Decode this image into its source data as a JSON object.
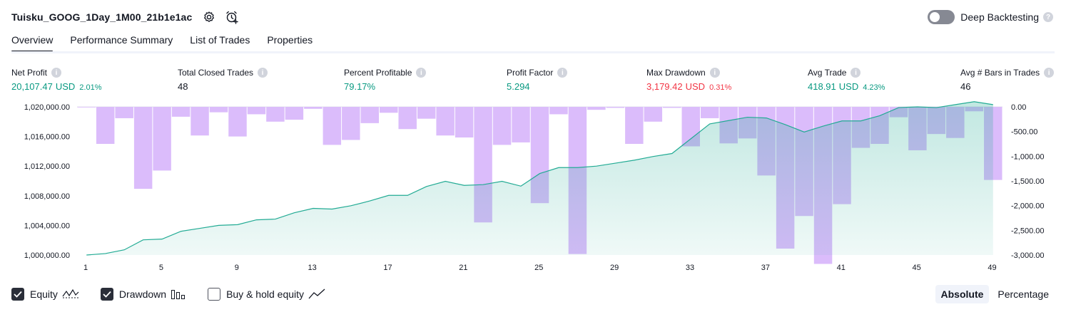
{
  "header": {
    "title": "Tuisku_GOOG_1Day_1M00_21b1e1ac",
    "settings_icon": "gear-icon",
    "alert_icon": "alarm-clock-add-icon"
  },
  "deep_backtesting": {
    "label": "Deep Backtesting",
    "enabled": false,
    "help": "?"
  },
  "tabs": [
    {
      "label": "Overview",
      "active": true
    },
    {
      "label": "Performance Summary",
      "active": false
    },
    {
      "label": "List of Trades",
      "active": false
    },
    {
      "label": "Properties",
      "active": false
    }
  ],
  "metrics": {
    "net_profit": {
      "label": "Net Profit",
      "value": "20,107.47",
      "unit": "USD",
      "pct": "2.01%"
    },
    "total_closed_trades": {
      "label": "Total Closed Trades",
      "value": "48"
    },
    "percent_profitable": {
      "label": "Percent Profitable",
      "value": "79.17%"
    },
    "profit_factor": {
      "label": "Profit Factor",
      "value": "5.294"
    },
    "max_drawdown": {
      "label": "Max Drawdown",
      "value": "3,179.42",
      "unit": "USD",
      "pct": "0.31%"
    },
    "avg_trade": {
      "label": "Avg Trade",
      "value": "418.91",
      "unit": "USD",
      "pct": "4.23%"
    },
    "avg_bars": {
      "label": "Avg # Bars in Trades",
      "value": "46"
    },
    "info_glyph": "i"
  },
  "colors": {
    "equity_line": "#22ab94",
    "equity_fill": "#22ab94",
    "drawdown_bar": "#d9b8fb",
    "positive": "#089981",
    "negative": "#f23645"
  },
  "chart_data": {
    "type": "line",
    "x": [
      1,
      2,
      3,
      4,
      5,
      6,
      7,
      8,
      9,
      10,
      11,
      12,
      13,
      14,
      15,
      16,
      17,
      18,
      19,
      20,
      21,
      22,
      23,
      24,
      25,
      26,
      27,
      28,
      29,
      30,
      31,
      32,
      33,
      34,
      35,
      36,
      37,
      38,
      39,
      40,
      41,
      42,
      43,
      44,
      45,
      46,
      47,
      48,
      49
    ],
    "x_tick_labels": [
      "1",
      "5",
      "9",
      "13",
      "17",
      "21",
      "25",
      "29",
      "33",
      "37",
      "41",
      "45",
      "49"
    ],
    "series": [
      {
        "name": "Equity",
        "type": "area",
        "axis": "left",
        "values": [
          1000000,
          1000200,
          1000700,
          1002050,
          1002150,
          1003200,
          1003600,
          1004000,
          1004100,
          1004750,
          1004850,
          1005700,
          1006300,
          1006200,
          1006650,
          1007300,
          1008050,
          1008050,
          1009250,
          1009950,
          1009400,
          1009500,
          1009950,
          1009300,
          1011000,
          1011800,
          1011800,
          1012000,
          1012400,
          1012800,
          1013300,
          1013700,
          1015700,
          1017700,
          1018150,
          1018600,
          1018500,
          1017600,
          1016600,
          1017400,
          1018100,
          1018100,
          1018800,
          1019900,
          1020000,
          1019900,
          1020300,
          1020700,
          1020300
        ]
      },
      {
        "name": "Drawdown",
        "type": "bar",
        "axis": "right",
        "values": [
          -10,
          -750,
          -230,
          -1660,
          -1290,
          -200,
          -580,
          -110,
          -600,
          -150,
          -300,
          -260,
          -40,
          -770,
          -670,
          -330,
          -120,
          -450,
          -240,
          -580,
          -620,
          -2340,
          -770,
          -720,
          -1950,
          -150,
          -2980,
          -60,
          -20,
          -750,
          -300,
          -20,
          -800,
          -230,
          -740,
          -640,
          -1390,
          -2870,
          -2210,
          -3180,
          -1970,
          -830,
          -750,
          -210,
          -880,
          -550,
          -630,
          -90,
          -1480
        ]
      }
    ],
    "y_left": {
      "min": 1000000,
      "max": 1020000,
      "tick_labels": [
        "1,020,000.00",
        "1,016,000.00",
        "1,012,000.00",
        "1,008,000.00",
        "1,004,000.00",
        "1,000,000.00"
      ]
    },
    "y_right": {
      "min": -3000,
      "max": 0,
      "tick_labels": [
        "0.00",
        "-500.00",
        "-1,000.00",
        "-1,500.00",
        "-2,000.00",
        "-2,500.00",
        "-3,000.00"
      ]
    },
    "grid": false
  },
  "legend": {
    "equity": {
      "label": "Equity",
      "checked": true,
      "icon": "equity-line-icon"
    },
    "drawdown": {
      "label": "Drawdown",
      "checked": true,
      "icon": "drawdown-bars-icon"
    },
    "buy_hold": {
      "label": "Buy & hold equity",
      "checked": false,
      "icon": "trend-line-icon"
    }
  },
  "view_mode": {
    "absolute": "Absolute",
    "percentage": "Percentage",
    "selected": "Absolute"
  }
}
